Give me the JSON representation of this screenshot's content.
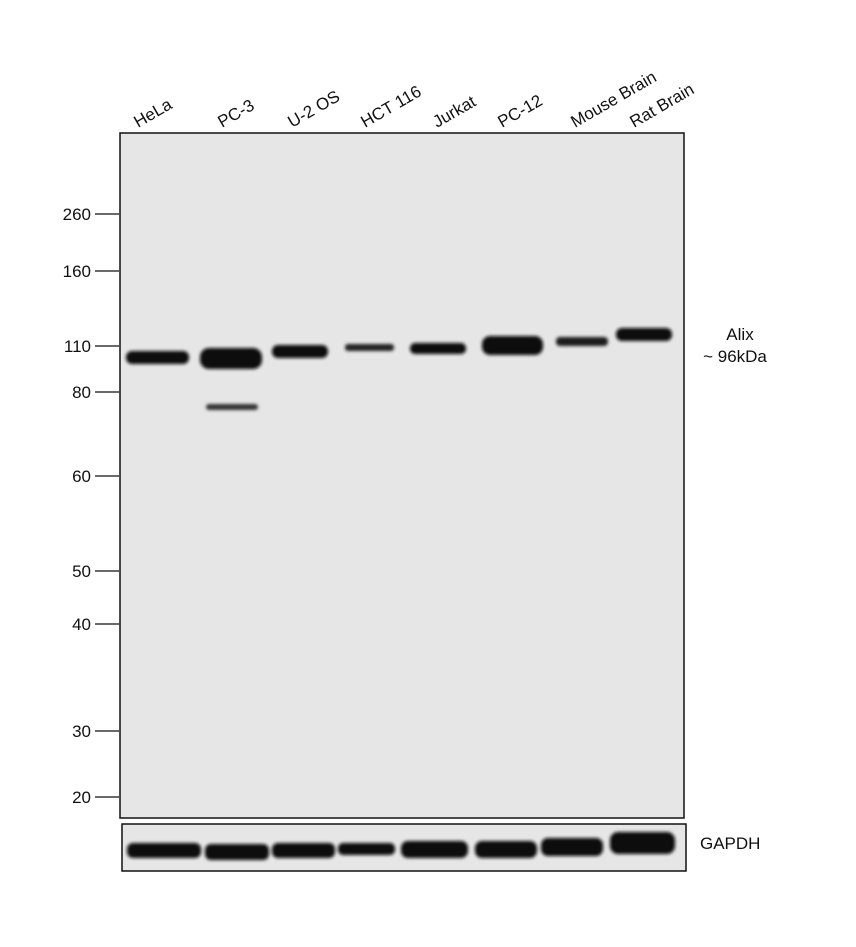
{
  "lanes": [
    "HeLa",
    "PC-3",
    "U-2 OS",
    "HCT 116",
    "Jurkat",
    "PC-12",
    "Mouse Brain",
    "Rat Brain"
  ],
  "markers": [
    260,
    160,
    110,
    80,
    60,
    50,
    40,
    30,
    20
  ],
  "target": {
    "name": "Alix",
    "size": "~ 96kDa"
  },
  "loading_control": "GAPDH"
}
